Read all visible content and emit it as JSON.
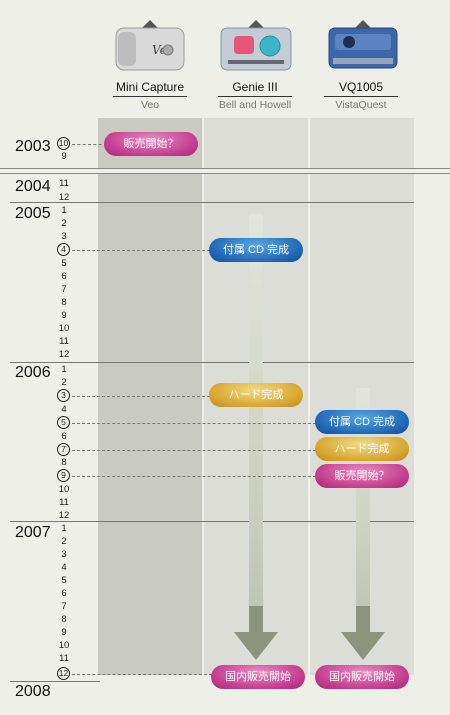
{
  "products": [
    {
      "name": "Mini Capture",
      "maker": "Veo",
      "camera_color": "#d8d8d8"
    },
    {
      "name": "Genie III",
      "maker": "Bell and Howell",
      "camera_color": "#b9c2cc"
    },
    {
      "name": "VQ1005",
      "maker": "VistaQuest",
      "camera_color": "#3d67a8"
    }
  ],
  "years": [
    "2003",
    "2004",
    "2005",
    "2006",
    "2007",
    "2008"
  ],
  "months": [
    "1",
    "2",
    "3",
    "4",
    "5",
    "6",
    "7",
    "8",
    "9",
    "10",
    "11",
    "12"
  ],
  "markers": {
    "m2003_10": "10",
    "m2003_9": "9",
    "m2004_11": "11",
    "m2004_12": "12",
    "m2005_4": "4",
    "m2006_3": "3",
    "m2006_5": "5",
    "m2006_7": "7",
    "m2006_9": "9",
    "m2007_12": "12"
  },
  "events": {
    "veo_sale": "販売開始？",
    "genie_cd": "付属 CD 完成",
    "genie_hw": "ハード完成",
    "genie_domestic": "国内販売開始",
    "vq_cd": "付属 CD 完成",
    "vq_hw": "ハード完成",
    "vq_sale": "販売開始？",
    "vq_domestic": "国内販売開始"
  },
  "colors": {
    "pink": "#c23c8d",
    "blue": "#1f67b5",
    "gold": "#d6a52d",
    "arrow": "#8e947c"
  }
}
